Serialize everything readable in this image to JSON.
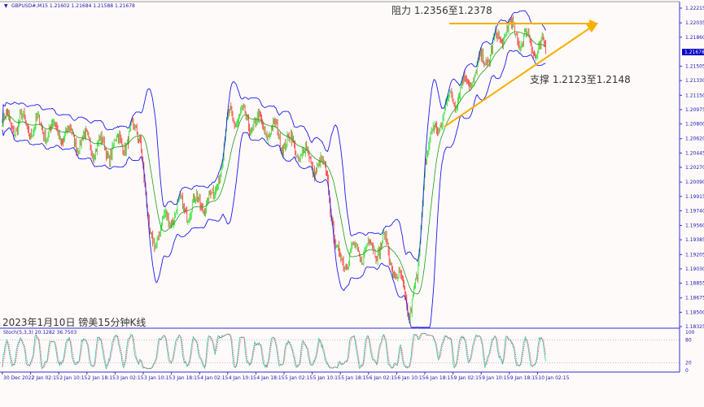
{
  "header": {
    "symbol_info": "GBPUSD#,M15  1.21602 1.21684 1.21588 1.21678",
    "caption": "2023年1月10日 镑美15分钟K线"
  },
  "annotations": {
    "resistance": "阻力 1.2356至1.2378",
    "support": "支撑 1.2123至1.2148"
  },
  "colors": {
    "background": "#fffafa",
    "axis": "#3030d0",
    "bollinger": "#1a1af0",
    "bull_candle": "#22dd22",
    "bear_candle": "#ff3030",
    "ma": "#16a016",
    "trendline": "#f5b000",
    "stoch_main": "#40c8b8",
    "stoch_signal": "#ff3030",
    "current_price_bg": "#0000c8"
  },
  "chart_data": [
    {
      "type": "candlestick",
      "title": "GBPUSD#,M15",
      "current_price": "1.21678",
      "ylim": [
        1.18325,
        1.22215
      ],
      "y_ticks": [
        "1.22215",
        "1.22035",
        "1.21860",
        "1.21505",
        "1.21330",
        "1.21150",
        "1.20975",
        "1.20800",
        "1.20620",
        "1.20445",
        "1.20270",
        "1.20090",
        "1.19915",
        "1.19740",
        "1.19560",
        "1.19385",
        "1.19205",
        "1.19030",
        "1.18855",
        "1.18675",
        "1.18500",
        "1.18325"
      ],
      "x_ticks": [
        "30 Dec 2022",
        "2 Jan 02:15",
        "2 Jan 10:15",
        "2 Jan 18:15",
        "3 Jan 02:15",
        "3 Jan 10:15",
        "3 Jan 18:15",
        "4 Jan 02:15",
        "4 Jan 10:15",
        "4 Jan 18:15",
        "5 Jan 02:15",
        "5 Jan 10:15",
        "5 Jan 18:15",
        "6 Jan 02:15",
        "6 Jan 10:15",
        "6 Jan 18:15",
        "9 Jan 02:15",
        "9 Jan 10:15",
        "9 Jan 18:15",
        "10 Jan 02:15"
      ],
      "approx_close_path": [
        [
          0,
          1.2083
        ],
        [
          55,
          1.2073
        ],
        [
          120,
          1.2048
        ],
        [
          157,
          1.2073
        ],
        [
          167,
          1.1934
        ],
        [
          195,
          1.1973
        ],
        [
          240,
          1.1988
        ],
        [
          259,
          1.2092
        ],
        [
          305,
          1.2073
        ],
        [
          342,
          1.2043
        ],
        [
          370,
          1.2018
        ],
        [
          380,
          1.1914
        ],
        [
          407,
          1.1924
        ],
        [
          435,
          1.1934
        ],
        [
          463,
          1.1854
        ],
        [
          472,
          1.1884
        ],
        [
          481,
          1.2043
        ],
        [
          505,
          1.2102
        ],
        [
          537,
          1.2142
        ],
        [
          574,
          1.2197
        ],
        [
          602,
          1.2177
        ],
        [
          618,
          1.2167
        ]
      ],
      "indicators": [
        "Bollinger Bands (20,2)",
        "Moving Average"
      ]
    },
    {
      "type": "line",
      "title": "Stoch(5,3,3) 20.1282 36.7503",
      "ylim": [
        0,
        100
      ],
      "y_ticks": [
        "100",
        "80",
        "20",
        "0"
      ],
      "levels": [
        80,
        20
      ]
    }
  ]
}
